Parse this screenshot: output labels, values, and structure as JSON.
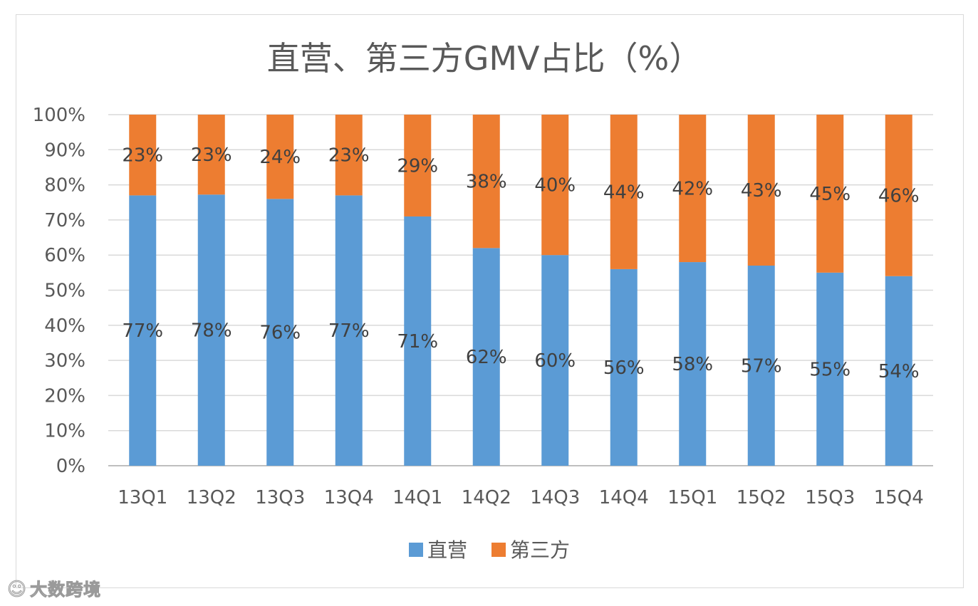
{
  "chart_data": {
    "type": "bar",
    "stacked": true,
    "percent": true,
    "title": "直营、第三方GMV占比（%）",
    "categories": [
      "13Q1",
      "13Q2",
      "13Q3",
      "13Q4",
      "14Q1",
      "14Q2",
      "14Q3",
      "14Q4",
      "15Q1",
      "15Q2",
      "15Q3",
      "15Q4"
    ],
    "series": [
      {
        "name": "直营",
        "color": "#5b9bd5",
        "values": [
          77,
          78,
          76,
          77,
          71,
          62,
          60,
          56,
          58,
          57,
          55,
          54
        ]
      },
      {
        "name": "第三方",
        "color": "#ed7d31",
        "values": [
          23,
          23,
          24,
          23,
          29,
          38,
          40,
          44,
          42,
          43,
          45,
          46
        ]
      }
    ],
    "yticks": [
      "0%",
      "10%",
      "20%",
      "30%",
      "40%",
      "50%",
      "60%",
      "70%",
      "80%",
      "90%",
      "100%"
    ],
    "ylim": [
      0,
      100
    ],
    "grid": true,
    "legend": "bottom"
  },
  "watermark": {
    "icon": "weibo-icon",
    "text": "大数跨境"
  }
}
